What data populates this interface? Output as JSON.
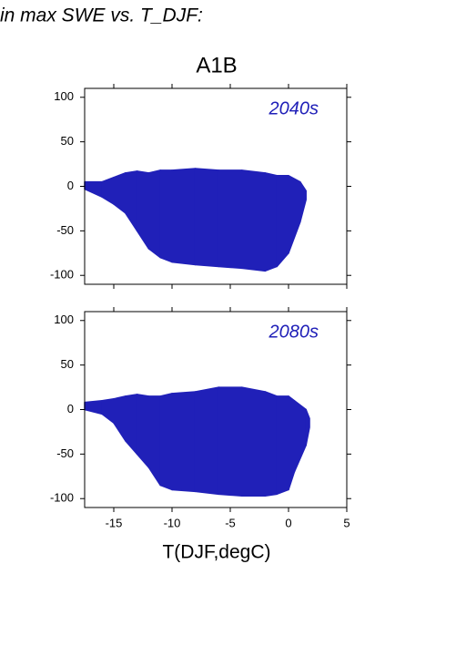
{
  "header": {
    "title": "in max SWE vs. T_DJF:"
  },
  "chart_data": [
    {
      "type": "band",
      "title": "A1B",
      "annotation": "2040s",
      "color": "#2020b8",
      "x": [
        -17.5,
        -16,
        -15,
        -14,
        -13,
        -12,
        -11,
        -10,
        -8,
        -6,
        -4,
        -2,
        -1,
        0,
        1,
        1.5
      ],
      "upper": [
        5,
        5,
        10,
        15,
        17,
        15,
        18,
        18,
        20,
        18,
        18,
        15,
        12,
        12,
        5,
        -5
      ],
      "lower": [
        -3,
        -12,
        -20,
        -30,
        -50,
        -70,
        -80,
        -85,
        -88,
        -90,
        -92,
        -95,
        -90,
        -75,
        -40,
        -15
      ],
      "xlim": [
        -17.5,
        5
      ],
      "xticks": [
        -15,
        -10,
        -5,
        0,
        5
      ],
      "ylim": [
        -110,
        110
      ],
      "yticks": [
        -100,
        -50,
        0,
        50,
        100
      ]
    },
    {
      "type": "band",
      "annotation": "2080s",
      "color": "#2020b8",
      "xlabel": "T(DJF,degC)",
      "x": [
        -17.5,
        -16,
        -15,
        -14,
        -13,
        -12,
        -11,
        -10,
        -8,
        -6,
        -4,
        -2,
        -1,
        0,
        0.5,
        1.5,
        1.8
      ],
      "upper": [
        8,
        10,
        12,
        15,
        17,
        15,
        15,
        18,
        20,
        25,
        25,
        20,
        15,
        15,
        10,
        0,
        -10
      ],
      "lower": [
        0,
        -5,
        -15,
        -35,
        -50,
        -65,
        -85,
        -90,
        -92,
        -95,
        -97,
        -97,
        -95,
        -90,
        -70,
        -40,
        -20
      ],
      "xlim": [
        -17.5,
        5
      ],
      "xticks": [
        -15,
        -10,
        -5,
        0,
        5
      ],
      "ylim": [
        -110,
        110
      ],
      "yticks": [
        -100,
        -50,
        0,
        50,
        100
      ]
    }
  ]
}
